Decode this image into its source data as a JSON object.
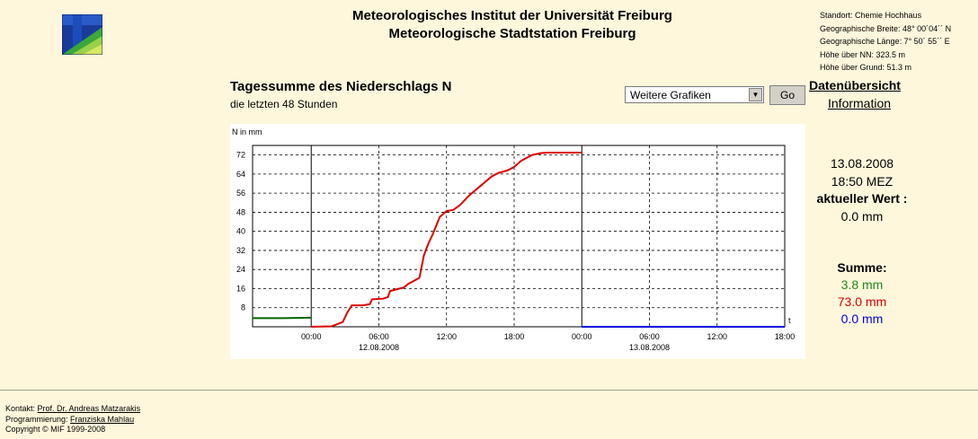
{
  "header": {
    "line1": "Meteorologisches Institut der Universität Freiburg",
    "line2": "Meteorologische Stadtstation Freiburg"
  },
  "station": {
    "lines": [
      "Standort: Chemie Hochhaus",
      "Geographische Breite: 48° 00´04´´ N",
      "Geographische Länge: 7° 50´ 55´´ E",
      "Höhe über NN: 323.5 m",
      "Höhe über Grund: 51.3 m"
    ]
  },
  "main": {
    "title": "Tagessumme des Niederschlags N",
    "subtitle": "die letzten 48 Stunden"
  },
  "controls": {
    "select_value": "Weitere Grafiken",
    "go_label": "Go",
    "overview_link": "Datenübersicht",
    "info_link": "Information"
  },
  "current": {
    "date": "13.08.2008",
    "time": "18:50 MEZ",
    "label": "aktueller Wert :",
    "value": "0.0 mm"
  },
  "sums": {
    "label": "Summe:",
    "items": [
      {
        "text": "3.8 mm",
        "color": "#1a8a1a"
      },
      {
        "text": "73.0 mm",
        "color": "#dd0000"
      },
      {
        "text": "0.0 mm",
        "color": "#0000dd"
      }
    ]
  },
  "footer": {
    "contact_label": "Kontakt:",
    "contact_name": "Prof. Dr. Andreas Matzarakis",
    "prog_label": "Programmierung:",
    "prog_name": "Franziska Mahlau",
    "copyright": "Copyright © MIF 1999-2008"
  },
  "chart_data": {
    "type": "line",
    "ylabel": "N in mm",
    "xlabel": "t",
    "ylim": [
      0,
      76
    ],
    "yticks": [
      8,
      16,
      24,
      32,
      40,
      48,
      56,
      64,
      72
    ],
    "xlim": [
      -5.2,
      42
    ],
    "xticks": [
      {
        "x": 0,
        "label": "00:00"
      },
      {
        "x": 6,
        "label": "06:00"
      },
      {
        "x": 12,
        "label": "12:00"
      },
      {
        "x": 18,
        "label": "18:00"
      },
      {
        "x": 24,
        "label": "00:00"
      },
      {
        "x": 30,
        "label": "06:00"
      },
      {
        "x": 36,
        "label": "12:00"
      },
      {
        "x": 42,
        "label": "18:00"
      }
    ],
    "date_labels": [
      {
        "x": 6,
        "label": "12.08.2008"
      },
      {
        "x": 30,
        "label": "13.08.2008"
      }
    ],
    "day_boundaries": [
      0,
      24
    ],
    "grid": true,
    "series": [
      {
        "color": "#006400",
        "x": [
          -5.2,
          -2.5,
          0
        ],
        "y": [
          3.6,
          3.6,
          3.8
        ]
      },
      {
        "color": "#dd0000",
        "x": [
          0,
          1.8,
          2.8,
          3.2,
          3.6,
          4.6,
          5.2,
          5.4,
          6.4,
          6.8,
          7.0,
          7.8,
          8.2,
          8.6,
          9.2,
          9.6,
          10.0,
          10.4,
          10.8,
          11.4,
          12.0,
          12.6,
          13.2,
          14.0,
          15.0,
          16.0,
          16.6,
          17.4,
          18.0,
          18.6,
          19.0,
          19.6,
          20.4,
          21.0,
          22.0,
          24.0
        ],
        "y": [
          0,
          0.2,
          2,
          6,
          9,
          9,
          9.5,
          11.5,
          11.8,
          12.5,
          15,
          16,
          16.4,
          18,
          19.5,
          20.5,
          30,
          35,
          39,
          46,
          48.5,
          49,
          51,
          55,
          59,
          63,
          64.5,
          65.5,
          67,
          69.5,
          70.5,
          72,
          72.8,
          73,
          73,
          73
        ]
      },
      {
        "color": "#0000dd",
        "x": [
          24,
          42
        ],
        "y": [
          0,
          0
        ]
      }
    ]
  }
}
